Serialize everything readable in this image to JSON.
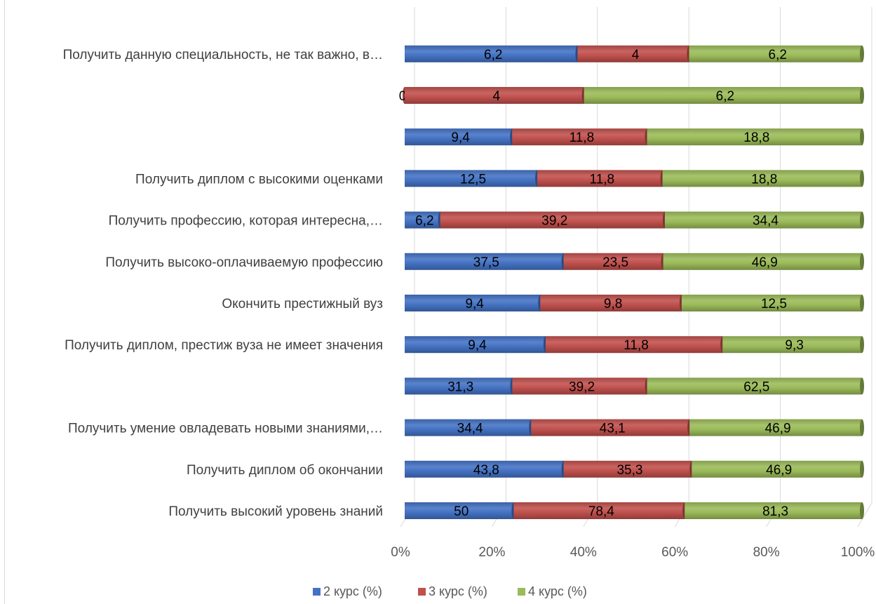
{
  "chart_data": {
    "type": "bar",
    "orientation": "horizontal",
    "stacking": "percent",
    "style": "3d-cylinder",
    "categories": [
      "Получить высокий уровень знаний",
      "Получить диплом об окончании",
      "Получить умение овладевать новыми знаниями,…",
      "",
      "Получить диплом, престиж вуза не имеет значения",
      "Окончить престижный вуз",
      "Получить высоко-оплачиваемую профессию",
      "Получить профессию, которая интересна,…",
      "Получить диплом с высокими оценками",
      "",
      "",
      "Получить данную специальность, не так важно, в…"
    ],
    "series": [
      {
        "name": "2 курс (%)",
        "color": "#4472c4",
        "values": [
          50,
          43.8,
          34.4,
          31.3,
          9.4,
          9.4,
          37.5,
          6.2,
          12.5,
          9.4,
          0,
          6.2
        ],
        "labels": [
          "50",
          "43,8",
          "34,4",
          "31,3",
          "9,4",
          "9,4",
          "37,5",
          "6,2",
          "12,5",
          "9,4",
          "0",
          "6,2"
        ]
      },
      {
        "name": "3 курс (%)",
        "color": "#c0504d",
        "values": [
          78.4,
          35.3,
          43.1,
          39.2,
          11.8,
          9.8,
          23.5,
          39.2,
          11.8,
          11.8,
          4,
          4
        ],
        "labels": [
          "78,4",
          "35,3",
          "43,1",
          "39,2",
          "11,8",
          "9,8",
          "23,5",
          "39,2",
          "11,8",
          "11,8",
          "4",
          "4"
        ]
      },
      {
        "name": "4 курс (%)",
        "color": "#9bbb59",
        "values": [
          81.3,
          46.9,
          46.9,
          62.5,
          9.3,
          12.5,
          46.9,
          34.4,
          18.8,
          18.8,
          6.2,
          6.2
        ],
        "labels": [
          "81,3",
          "46,9",
          "46,9",
          "62,5",
          "9,3",
          "12,5",
          "46,9",
          "34,4",
          "18,8",
          "18,8",
          "6,2",
          "6,2"
        ]
      }
    ],
    "x_ticks": [
      "0%",
      "20%",
      "40%",
      "60%",
      "80%",
      "100%"
    ],
    "xlim": [
      0,
      100
    ],
    "grid": true,
    "legend_position": "bottom"
  }
}
